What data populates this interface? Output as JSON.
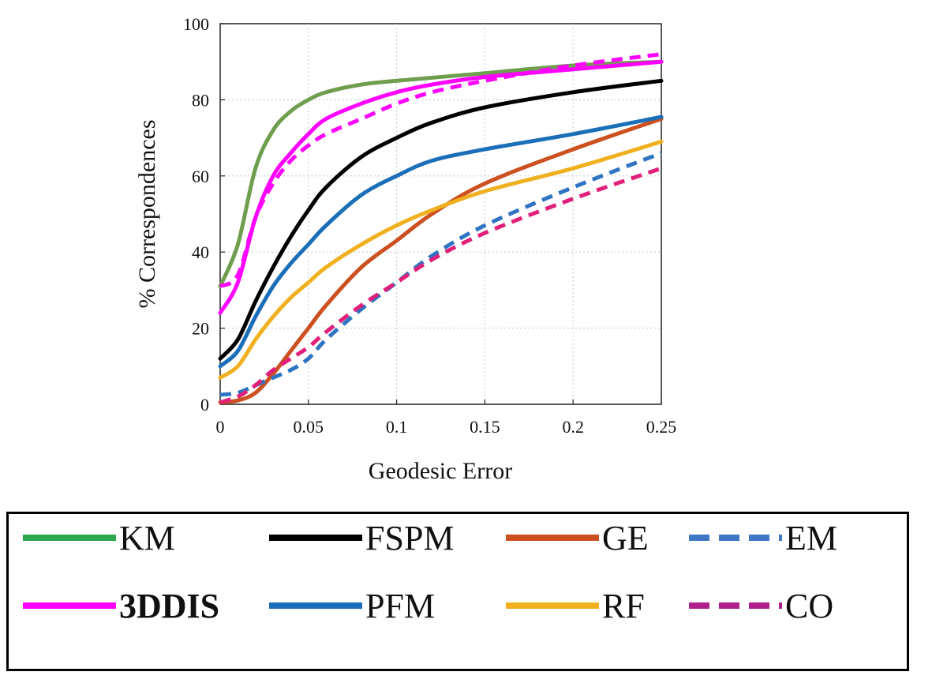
{
  "chart_data": {
    "type": "line",
    "title": "",
    "xlabel": "Geodesic Error",
    "ylabel": "% Correspondences",
    "xlim": [
      0,
      0.25
    ],
    "ylim": [
      0,
      100
    ],
    "xticks": [
      0,
      0.05,
      0.1,
      0.15,
      0.2,
      0.25
    ],
    "xtick_labels": [
      "0",
      "0.05",
      "0.1",
      "0.15",
      "0.2",
      "0.25"
    ],
    "yticks": [
      0,
      20,
      40,
      60,
      80,
      100
    ],
    "ytick_labels": [
      "0",
      "20",
      "40",
      "60",
      "80",
      "100"
    ],
    "grid": true,
    "legend_placement": "below",
    "series": [
      {
        "name": "KM",
        "color": "#6f9e4e",
        "dash": "solid",
        "x": [
          0,
          0.01,
          0.02,
          0.03,
          0.04,
          0.05,
          0.06,
          0.08,
          0.1,
          0.15,
          0.2,
          0.25
        ],
        "y": [
          31,
          42,
          62,
          72,
          77,
          80,
          82,
          84,
          85,
          87,
          89,
          90
        ]
      },
      {
        "name": "FSPM",
        "color": "#000000",
        "dash": "solid",
        "x": [
          0,
          0.01,
          0.02,
          0.03,
          0.04,
          0.05,
          0.06,
          0.08,
          0.1,
          0.12,
          0.15,
          0.2,
          0.25
        ],
        "y": [
          12,
          17,
          27,
          36,
          44,
          51,
          57,
          65,
          70,
          74,
          78,
          82,
          85
        ]
      },
      {
        "name": "GE",
        "color": "#cc5020",
        "dash": "solid",
        "x": [
          0,
          0.01,
          0.02,
          0.03,
          0.04,
          0.05,
          0.06,
          0.08,
          0.1,
          0.12,
          0.15,
          0.2,
          0.25
        ],
        "y": [
          0.5,
          1,
          3,
          8,
          14,
          20,
          26,
          36,
          43,
          50,
          58,
          67,
          75
        ]
      },
      {
        "name": "EM",
        "color": "#2f74c2",
        "dash": "dashed",
        "x": [
          0,
          0.01,
          0.02,
          0.03,
          0.04,
          0.05,
          0.06,
          0.08,
          0.1,
          0.12,
          0.15,
          0.2,
          0.25
        ],
        "y": [
          2.5,
          3,
          5,
          7,
          9,
          12,
          17,
          25,
          32,
          39,
          47,
          57,
          66
        ]
      },
      {
        "name": "3DDIS",
        "color": "#ff00ff",
        "dash": "solid",
        "x": [
          0,
          0.01,
          0.02,
          0.03,
          0.04,
          0.05,
          0.06,
          0.08,
          0.1,
          0.12,
          0.15,
          0.2,
          0.25
        ],
        "y": [
          24,
          32,
          49,
          60,
          66,
          71,
          75,
          79,
          82,
          84,
          86,
          88,
          90
        ]
      },
      {
        "name": "PFM",
        "color": "#1a6fb8",
        "dash": "solid",
        "x": [
          0,
          0.01,
          0.02,
          0.03,
          0.04,
          0.05,
          0.06,
          0.08,
          0.1,
          0.12,
          0.15,
          0.2,
          0.25
        ],
        "y": [
          10,
          14,
          23,
          31,
          37,
          42,
          47,
          55,
          60,
          64,
          67,
          71,
          75.5
        ]
      },
      {
        "name": "RF",
        "color": "#f0b020",
        "dash": "solid",
        "x": [
          0,
          0.01,
          0.02,
          0.03,
          0.04,
          0.05,
          0.06,
          0.08,
          0.1,
          0.12,
          0.15,
          0.2,
          0.25
        ],
        "y": [
          7,
          10,
          17,
          23,
          28,
          32,
          36,
          42,
          47,
          51,
          56,
          62,
          69
        ]
      },
      {
        "name": "CO",
        "color": "#e0207a",
        "dash": "dashed",
        "x": [
          0,
          0.01,
          0.02,
          0.03,
          0.04,
          0.05,
          0.06,
          0.08,
          0.1,
          0.12,
          0.15,
          0.2,
          0.25
        ],
        "y": [
          0.5,
          2,
          5,
          9,
          12,
          15,
          19,
          26,
          32,
          38,
          45,
          54,
          62
        ]
      },
      {
        "name": "3DDIS dashed",
        "color": "#ff00ff",
        "dash": "dashed",
        "x": [
          0,
          0.01,
          0.02,
          0.03,
          0.04,
          0.05,
          0.06,
          0.08,
          0.1,
          0.12,
          0.15,
          0.2,
          0.25
        ],
        "y": [
          31,
          34,
          49,
          58,
          64,
          68,
          71,
          75,
          79,
          82,
          85,
          89,
          92
        ]
      }
    ]
  },
  "legend": {
    "items": [
      {
        "label": "KM",
        "color": "#2ca850",
        "dash": "solid",
        "bold": false
      },
      {
        "label": "FSPM",
        "color": "#000000",
        "dash": "solid",
        "bold": false
      },
      {
        "label": "GE",
        "color": "#cc5020",
        "dash": "solid",
        "bold": false
      },
      {
        "label": "EM",
        "color": "#4078c8",
        "dash": "dashed",
        "bold": false
      },
      {
        "label": "3DDIS",
        "color": "#ff00ff",
        "dash": "solid",
        "bold": true
      },
      {
        "label": "PFM",
        "color": "#1a6fb8",
        "dash": "solid",
        "bold": false
      },
      {
        "label": "RF",
        "color": "#f0b020",
        "dash": "solid",
        "bold": false
      },
      {
        "label": "CO",
        "color": "#b0208a",
        "dash": "dashed",
        "bold": false
      }
    ]
  }
}
